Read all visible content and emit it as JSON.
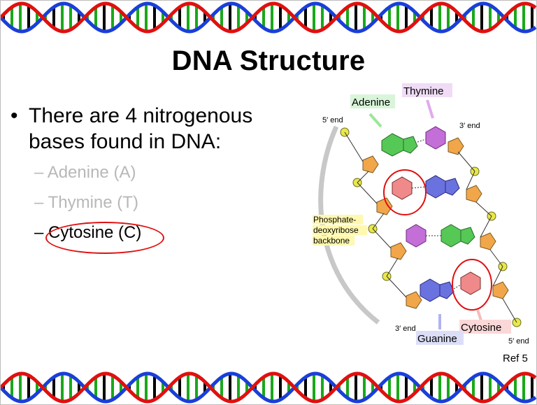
{
  "slide": {
    "title": "DNA Structure",
    "bullet": "There are 4 nitrogenous bases found in DNA:",
    "sub_items": [
      {
        "label": "Adenine (A)",
        "faded": true
      },
      {
        "label": "Thymine (T)",
        "faded": true
      },
      {
        "label": "Cytosine (C)",
        "faded": false,
        "circled": true
      }
    ],
    "reference": "Ref 5"
  },
  "figure": {
    "labels": {
      "adenine": "Adenine",
      "thymine": "Thymine",
      "cytosine": "Cytosine",
      "guanine": "Guanine",
      "backbone_line1": "Phosphate-",
      "backbone_line2": "deoxyribose",
      "backbone_line3": "backbone",
      "end_5_top": "5′ end",
      "end_3_top": "3′ end",
      "end_3_bottom": "3′ end",
      "end_5_bottom": "5′ end"
    },
    "colors": {
      "adenine": "#55c855",
      "thymine": "#c46ed8",
      "cytosine": "#f08a8a",
      "guanine": "#6a72e0",
      "sugar": "#f2a64a",
      "phosphate": "#e8e84a",
      "highlight_circle": "#e01010"
    }
  },
  "decor": {
    "helix_colors": [
      "#1a3fd8",
      "#e01010",
      "#1aa81a",
      "#000000"
    ]
  }
}
